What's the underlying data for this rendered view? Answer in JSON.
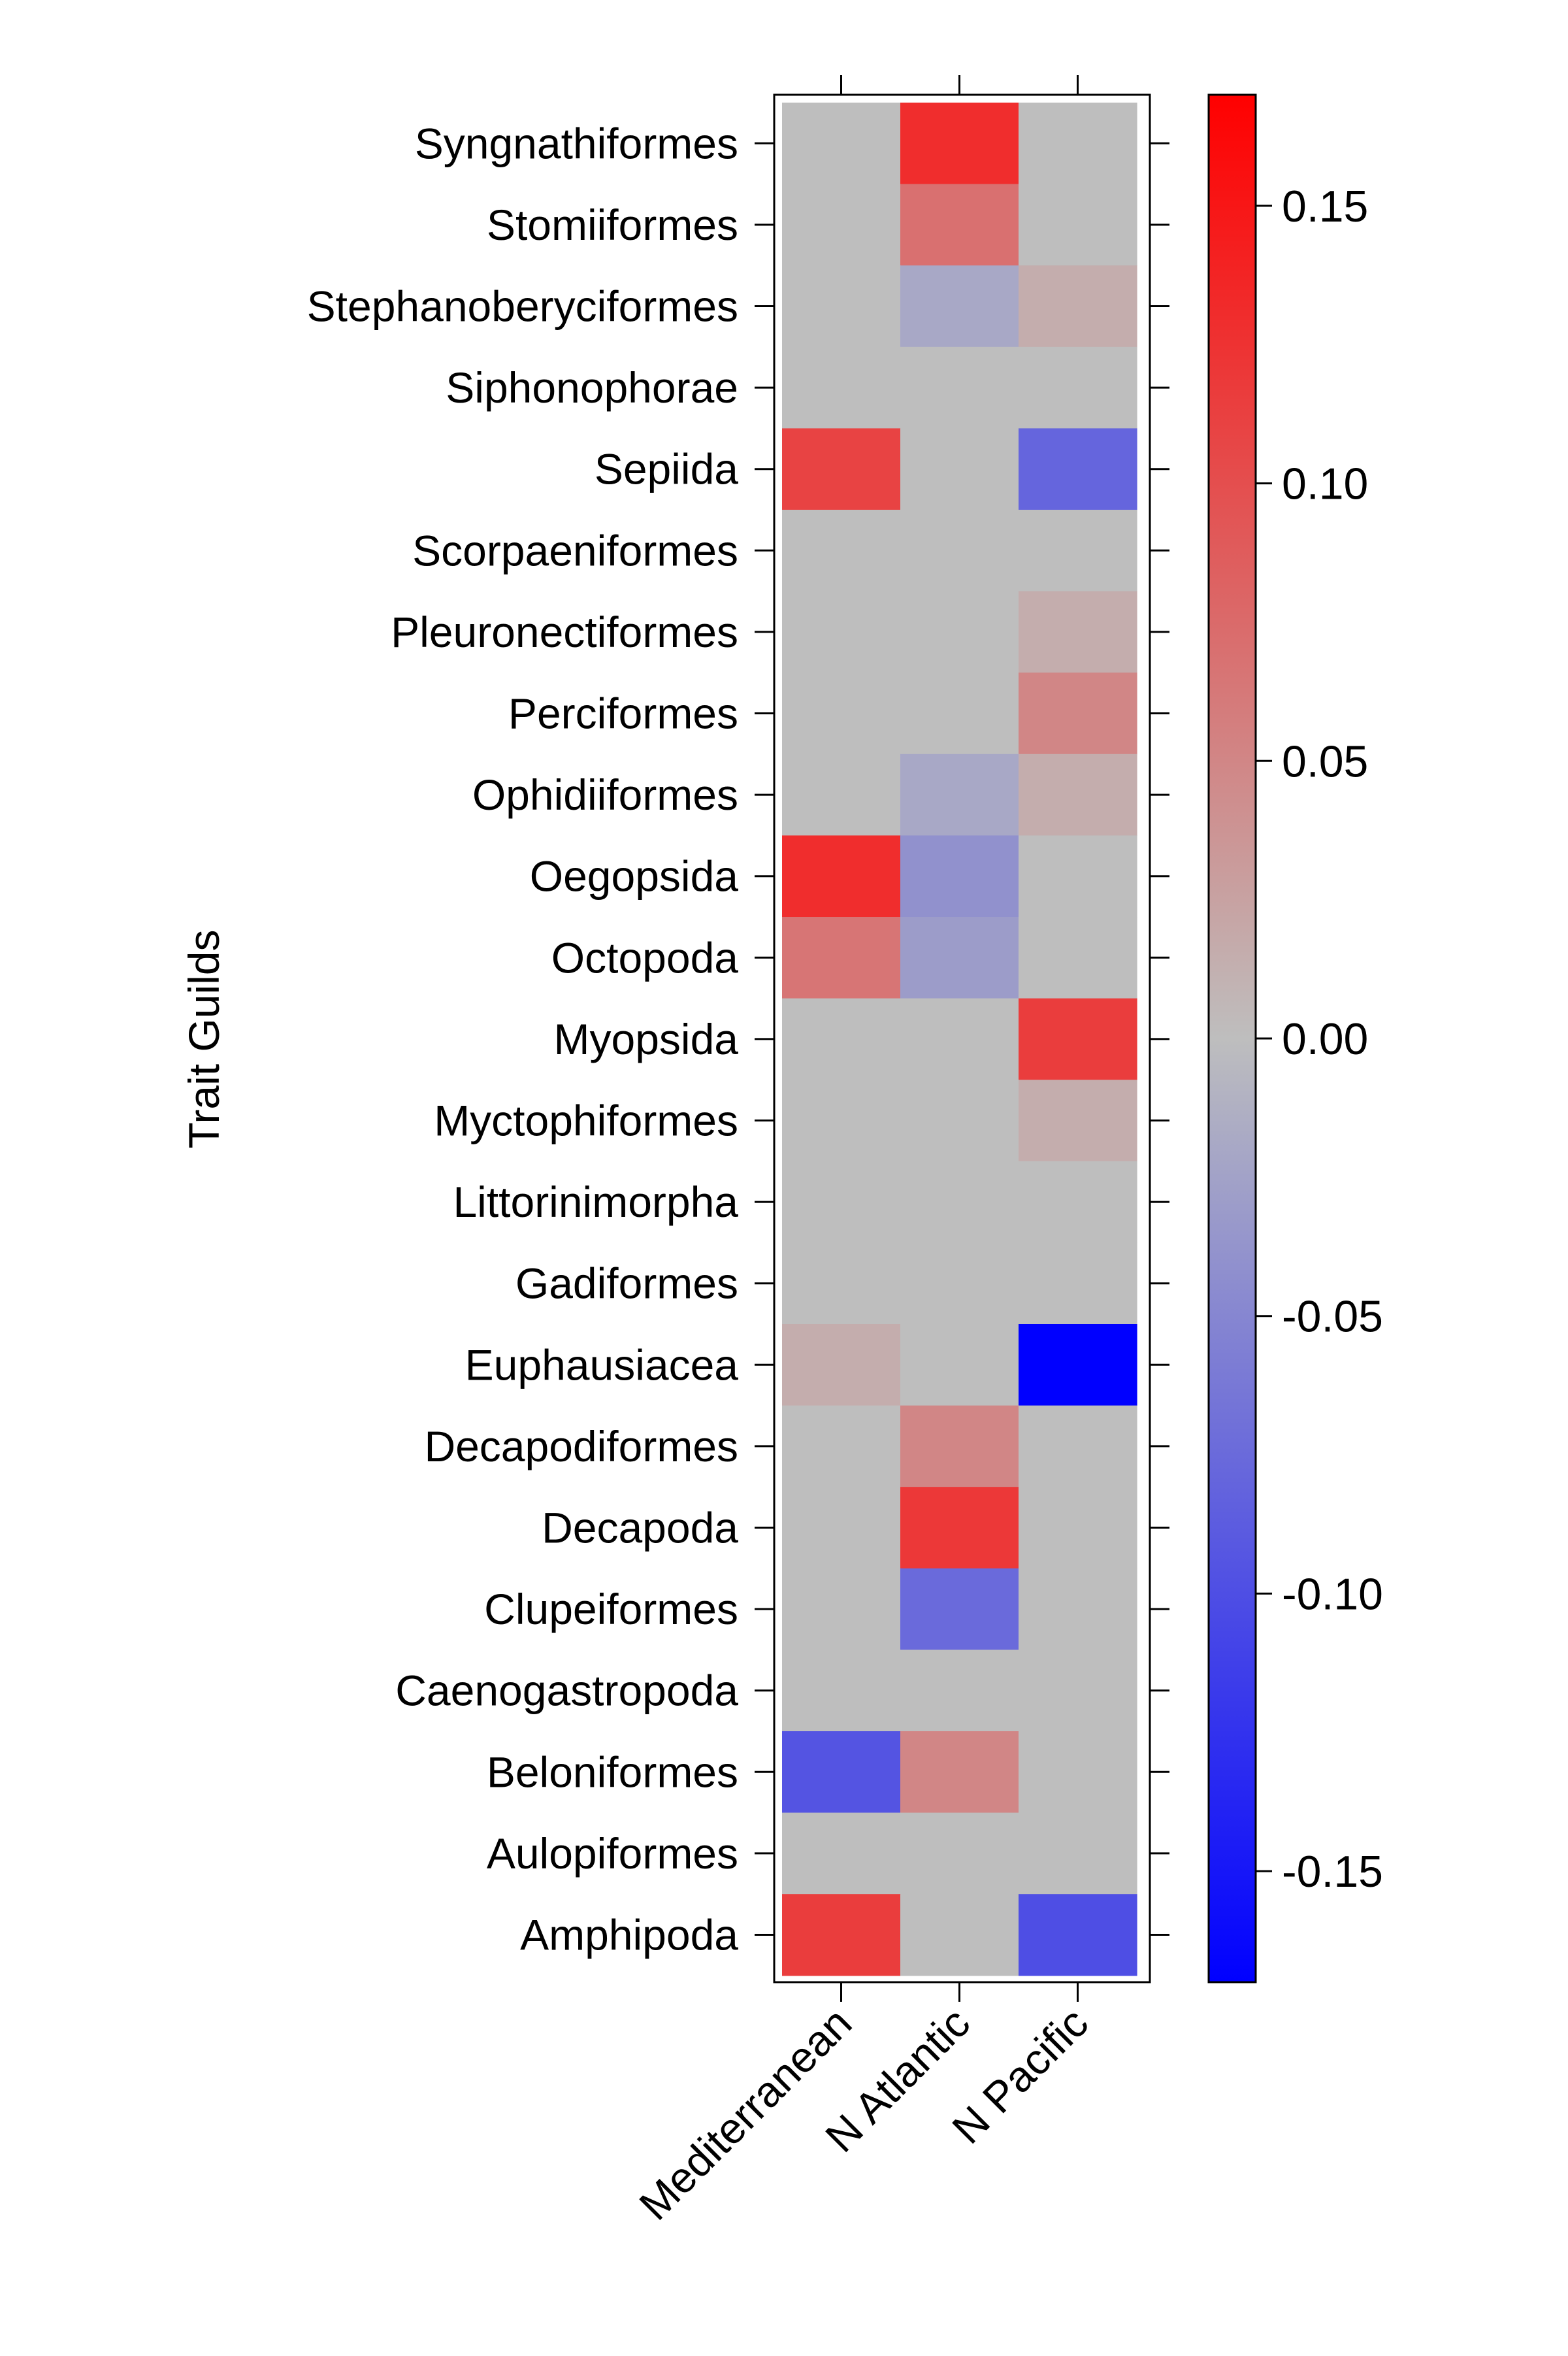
{
  "chart_data": {
    "type": "heatmap",
    "title": "",
    "xlabel": "",
    "ylabel": "Trait Guilds",
    "x_categories": [
      "Mediterranean",
      "N Atlantic",
      "N Pacific"
    ],
    "y_categories": [
      "Syngnathiformes",
      "Stomiiformes",
      "Stephanoberyciformes",
      "Siphonophorae",
      "Sepiida",
      "Scorpaeniformes",
      "Pleuronectiformes",
      "Perciformes",
      "Ophidiiformes",
      "Oegopsida",
      "Octopoda",
      "Myopsida",
      "Myctophiformes",
      "Littorinimorpha",
      "Gadiformes",
      "Euphausiacea",
      "Decapodiformes",
      "Decapoda",
      "Clupeiformes",
      "Caenogastropoda",
      "Beloniformes",
      "Aulopiformes",
      "Amphipoda"
    ],
    "values": [
      [
        0.0,
        0.13,
        0.0
      ],
      [
        0.0,
        0.07,
        0.0
      ],
      [
        0.0,
        -0.02,
        0.015
      ],
      [
        0.0,
        0.0,
        0.0
      ],
      [
        0.11,
        0.0,
        -0.08
      ],
      [
        0.0,
        0.0,
        0.0
      ],
      [
        0.0,
        0.0,
        0.015
      ],
      [
        0.0,
        0.0,
        0.05
      ],
      [
        0.0,
        -0.02,
        0.015
      ],
      [
        0.13,
        -0.04,
        0.0
      ],
      [
        0.065,
        -0.03,
        0.0
      ],
      [
        0.0,
        0.0,
        0.115
      ],
      [
        0.0,
        0.0,
        0.015
      ],
      [
        0.0,
        0.0,
        0.0
      ],
      [
        0.0,
        0.0,
        0.0
      ],
      [
        0.015,
        0.0,
        -0.17
      ],
      [
        0.0,
        0.05,
        0.0
      ],
      [
        0.0,
        0.12,
        0.0
      ],
      [
        0.0,
        -0.075,
        0.0
      ],
      [
        0.0,
        0.0,
        0.0
      ],
      [
        -0.095,
        0.05,
        0.0
      ],
      [
        0.0,
        0.0,
        0.0
      ],
      [
        0.115,
        0.0,
        -0.1
      ]
    ],
    "zlim": [
      -0.17,
      0.17
    ],
    "colorbar_ticks": [
      0.15,
      0.1,
      0.05,
      0.0,
      -0.05,
      -0.1,
      -0.15
    ],
    "colorbar_tick_labels": [
      "0.15",
      "0.10",
      "0.05",
      "0.00",
      "-0.05",
      "-0.10",
      "-0.15"
    ],
    "colors": {
      "low": "#0000ff",
      "mid": "#bebebe",
      "high": "#ff0000"
    },
    "grid": false,
    "legend": "colorbar-right"
  }
}
